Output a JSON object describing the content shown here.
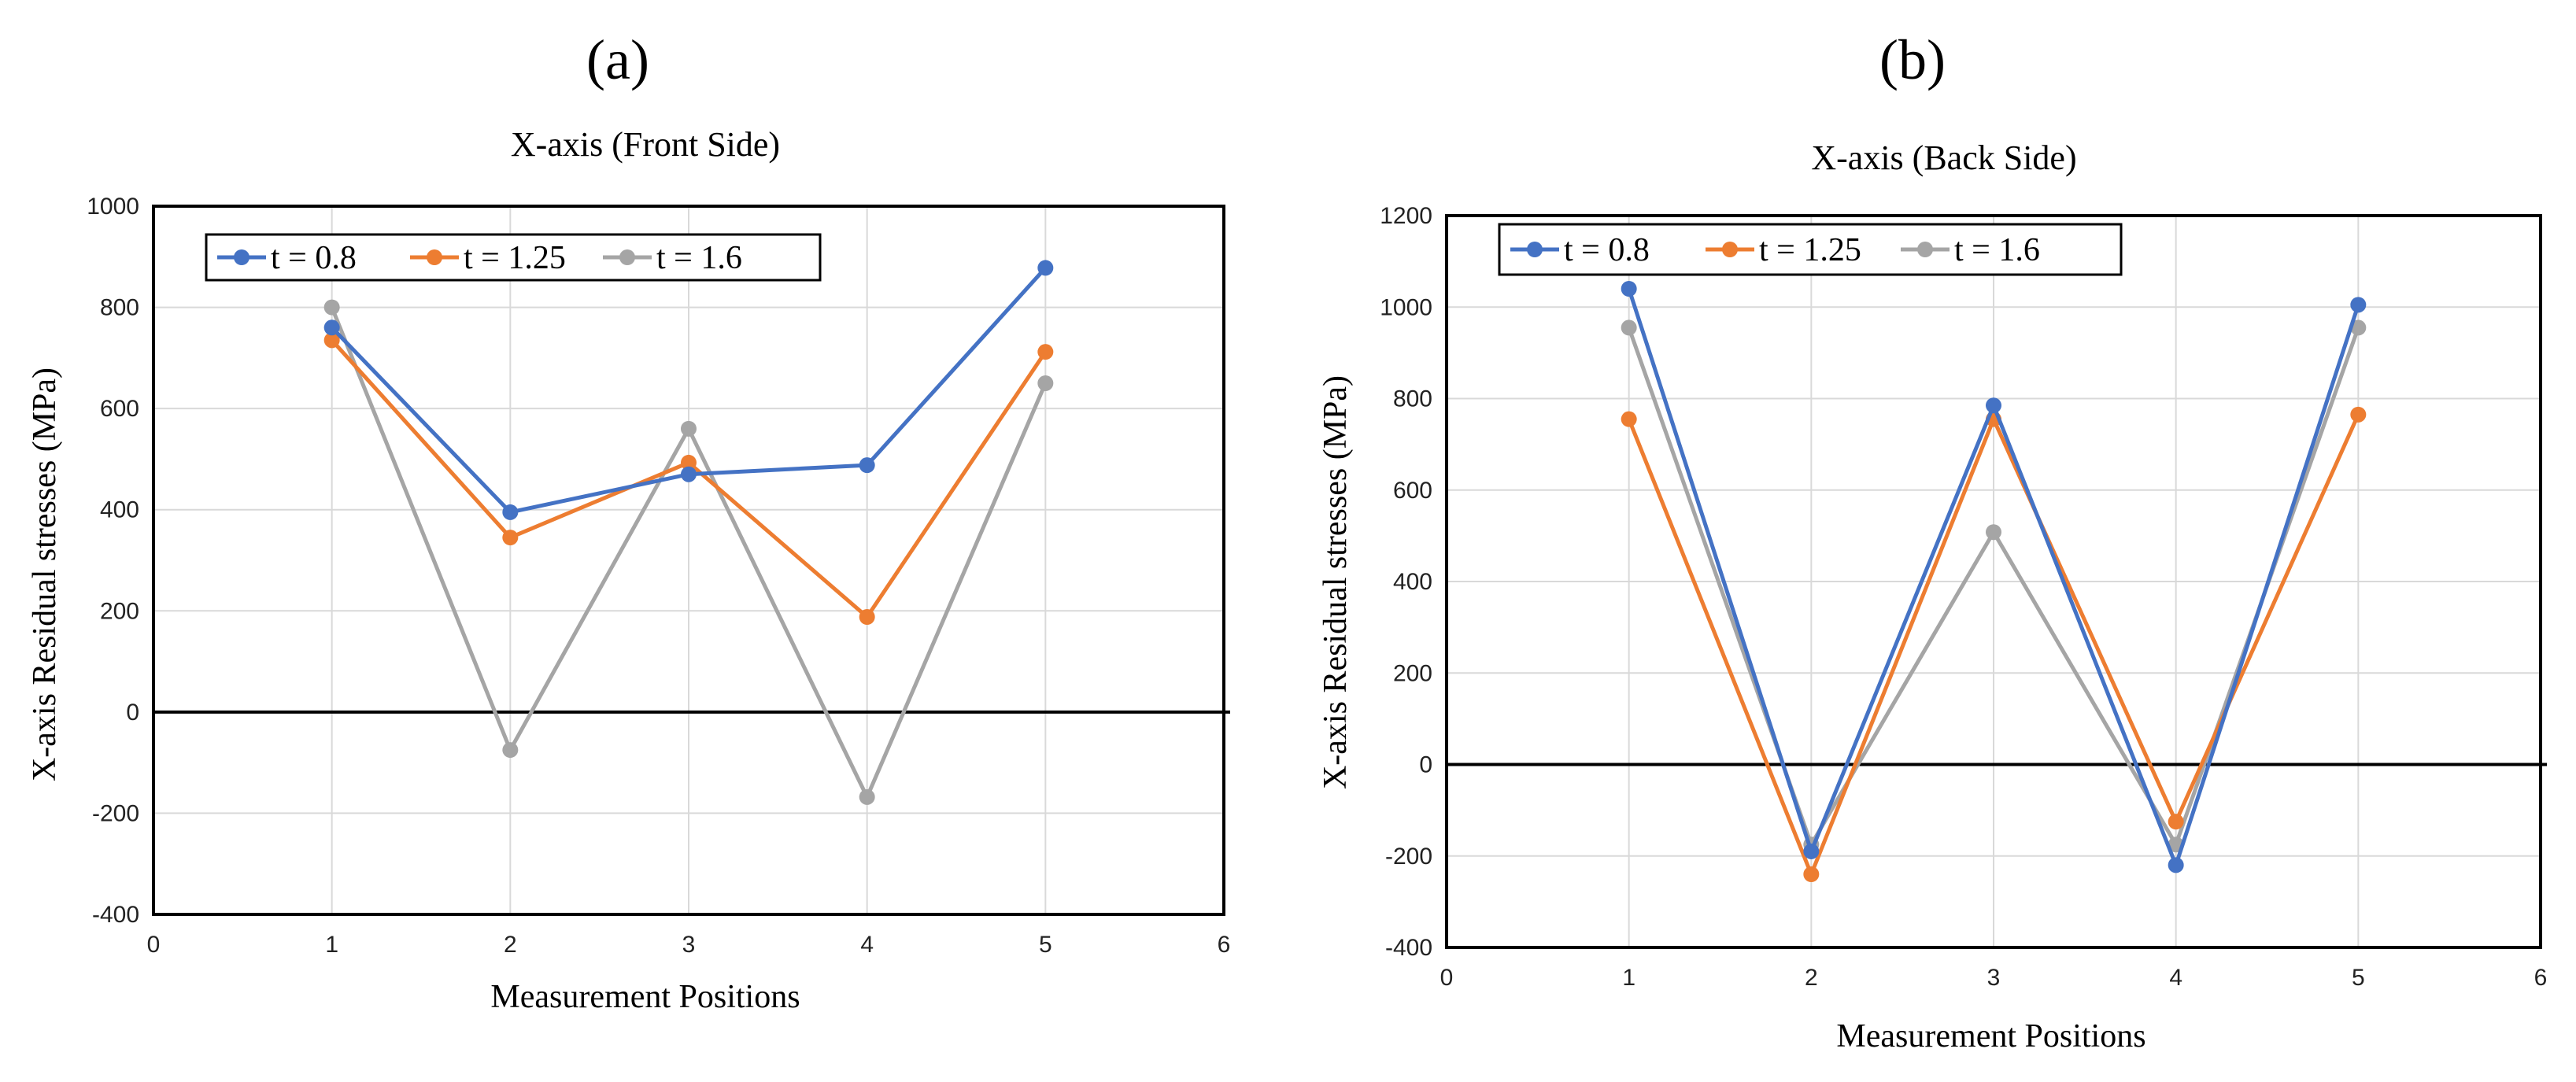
{
  "colors": {
    "t08": "#4472C4",
    "t125": "#ED7D31",
    "t16": "#A5A5A5"
  },
  "chart_data": [
    {
      "type": "line",
      "panel_label": "(a)",
      "title": "X-axis (Front Side)",
      "xlabel": "Measurement Positions",
      "ylabel": "X-axis Residual stresses  (MPa)",
      "xlim": [
        0,
        6
      ],
      "ylim": [
        -400,
        1000
      ],
      "xticks": [
        0,
        1,
        2,
        3,
        4,
        5,
        6
      ],
      "yticks": [
        -400,
        -200,
        0,
        200,
        400,
        600,
        800,
        1000
      ],
      "x": [
        1,
        2,
        3,
        4,
        5
      ],
      "series": [
        {
          "name": "t = 0.8",
          "color_key": "t08",
          "values": [
            760,
            395,
            470,
            488,
            878
          ]
        },
        {
          "name": "t = 1.25",
          "color_key": "t125",
          "values": [
            735,
            345,
            493,
            188,
            712
          ]
        },
        {
          "name": "t = 1.6",
          "color_key": "t16",
          "values": [
            800,
            -75,
            560,
            -168,
            650
          ]
        }
      ],
      "legend": "top-left"
    },
    {
      "type": "line",
      "panel_label": "(b)",
      "title": "X-axis (Back Side)",
      "xlabel": "Measurement Positions",
      "ylabel": "X-axis Residual stresses  (MPa)",
      "xlim": [
        0,
        6
      ],
      "ylim": [
        -400,
        1200
      ],
      "xticks": [
        0,
        1,
        2,
        3,
        4,
        5,
        6
      ],
      "yticks": [
        -400,
        -200,
        0,
        200,
        400,
        600,
        800,
        1000,
        1200
      ],
      "x": [
        1,
        2,
        3,
        4,
        5
      ],
      "series": [
        {
          "name": "t = 0.8",
          "color_key": "t08",
          "values": [
            1040,
            -190,
            785,
            -220,
            1005
          ]
        },
        {
          "name": "t = 1.25",
          "color_key": "t125",
          "values": [
            755,
            -240,
            755,
            -125,
            765
          ]
        },
        {
          "name": "t = 1.6",
          "color_key": "t16",
          "values": [
            955,
            -175,
            508,
            -175,
            955
          ]
        }
      ],
      "legend": "top-left"
    }
  ]
}
